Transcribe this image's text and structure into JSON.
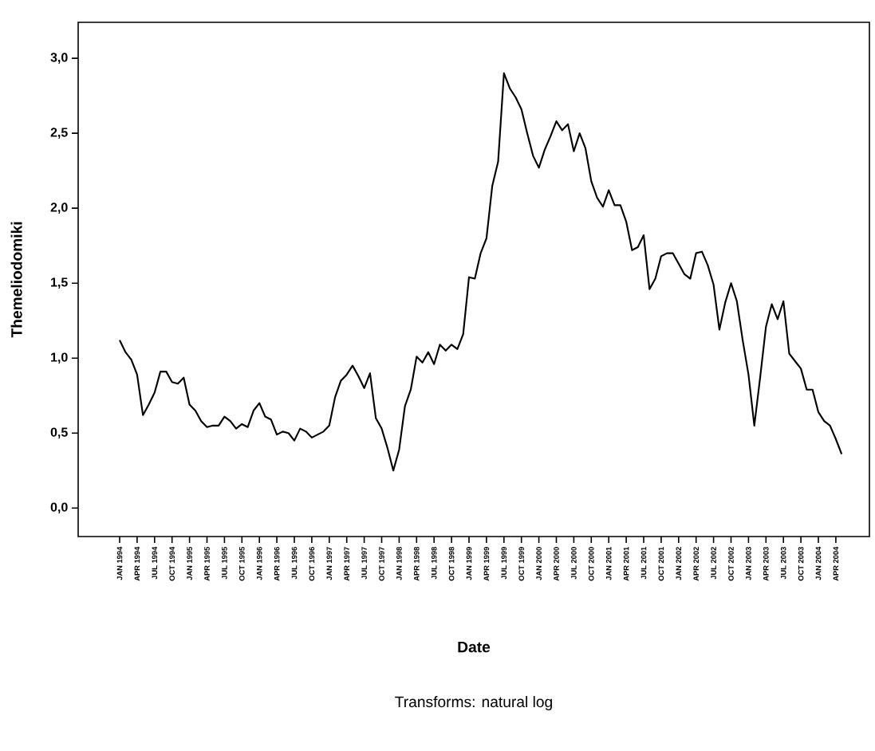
{
  "chart_data": {
    "type": "line",
    "xlabel": "Date",
    "ylabel": "Themeliodomiki",
    "annotations": [
      "Transforms: natural log"
    ],
    "categories": [
      "JAN 1994",
      null,
      null,
      "APR 1994",
      null,
      null,
      "JUL 1994",
      null,
      null,
      "OCT 1994",
      null,
      null,
      "JAN 1995",
      null,
      null,
      "APR 1995",
      null,
      null,
      "JUL 1995",
      null,
      null,
      "OCT 1995",
      null,
      null,
      "JAN 1996",
      null,
      null,
      "APR 1996",
      null,
      null,
      "JUL 1996",
      null,
      null,
      "OCT 1996",
      null,
      null,
      "JAN 1997",
      null,
      null,
      "APR 1997",
      null,
      null,
      "JUL 1997",
      null,
      null,
      "OCT 1997",
      null,
      null,
      "JAN 1998",
      null,
      null,
      "APR 1998",
      null,
      null,
      "JUL 1998",
      null,
      null,
      "OCT 1998",
      null,
      null,
      "JAN 1999",
      null,
      null,
      "APR 1999",
      null,
      null,
      "JUL 1999",
      null,
      null,
      "OCT 1999",
      null,
      null,
      "JAN 2000",
      null,
      null,
      "APR 2000",
      null,
      null,
      "JUL 2000",
      null,
      null,
      "OCT 2000",
      null,
      null,
      "JAN 2001",
      null,
      null,
      "APR 2001",
      null,
      null,
      "JUL 2001",
      null,
      null,
      "OCT 2001",
      null,
      null,
      "JAN 2002",
      null,
      null,
      "APR 2002",
      null,
      null,
      "JUL 2002",
      null,
      null,
      "OCT 2002",
      null,
      null,
      "JAN 2003",
      null,
      null,
      "APR 2003",
      null,
      null,
      "JUL 2003",
      null,
      null,
      "OCT 2003",
      null,
      null,
      "JAN 2004",
      null,
      null,
      "APR 2004",
      null
    ],
    "series": [
      {
        "color": "#000000",
        "values": [
          1.12,
          1.04,
          0.99,
          0.89,
          0.62,
          0.69,
          0.77,
          0.91,
          0.91,
          0.84,
          0.83,
          0.87,
          0.69,
          0.65,
          0.58,
          0.54,
          0.55,
          0.55,
          0.61,
          0.58,
          0.53,
          0.56,
          0.54,
          0.65,
          0.7,
          0.61,
          0.59,
          0.49,
          0.51,
          0.5,
          0.45,
          0.53,
          0.51,
          0.47,
          0.49,
          0.51,
          0.55,
          0.74,
          0.85,
          0.89,
          0.95,
          0.88,
          0.8,
          0.9,
          0.6,
          0.53,
          0.4,
          0.25,
          0.39,
          0.68,
          0.79,
          1.01,
          0.97,
          1.04,
          0.96,
          1.09,
          1.05,
          1.09,
          1.06,
          1.16,
          1.54,
          1.53,
          1.7,
          1.8,
          2.15,
          2.31,
          2.9,
          2.8,
          2.74,
          2.66,
          2.5,
          2.35,
          2.27,
          2.39,
          2.48,
          2.58,
          2.52,
          2.56,
          2.38,
          2.5,
          2.4,
          2.18,
          2.07,
          2.01,
          2.12,
          2.02,
          2.02,
          1.91,
          1.72,
          1.74,
          1.82,
          1.46,
          1.53,
          1.68,
          1.7,
          1.7,
          1.63,
          1.56,
          1.53,
          1.7,
          1.71,
          1.62,
          1.49,
          1.19,
          1.37,
          1.5,
          1.38,
          1.12,
          0.89,
          0.55,
          0.87,
          1.21,
          1.36,
          1.26,
          1.38,
          1.03,
          0.98,
          0.93,
          0.79,
          0.79,
          0.64,
          0.58,
          0.55,
          0.46,
          0.36
        ]
      }
    ],
    "ylim": [
      -0.19,
      3.24
    ],
    "yticks": [
      {
        "value": 0,
        "label": "0,0"
      },
      {
        "value": 0.5,
        "label": "0,5"
      },
      {
        "value": 1,
        "label": "1,0"
      },
      {
        "value": 1.5,
        "label": "1,5"
      },
      {
        "value": 2,
        "label": "2,0"
      },
      {
        "value": 2.5,
        "label": "2,5"
      },
      {
        "value": 3,
        "label": "3,0"
      }
    ],
    "line_style": "solid",
    "marker": "none"
  }
}
